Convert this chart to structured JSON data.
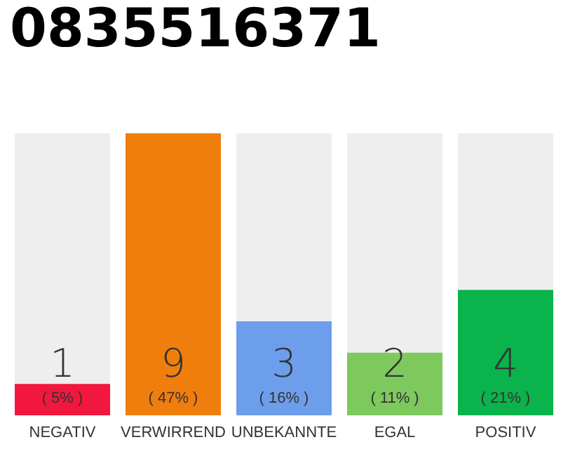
{
  "chart_data": {
    "type": "bar",
    "title": "0835516371",
    "categories": [
      "NEGATIV",
      "VERWIRREND",
      "UNBEKANNTE",
      "EGAL",
      "POSITIV"
    ],
    "values": [
      1,
      9,
      3,
      2,
      4
    ],
    "colors": [
      "#f2173f",
      "#f07e0c",
      "#6d9eeb",
      "#7dc95e",
      "#0ab34b"
    ],
    "value_labels": [
      "1\n( 5% )",
      "9\n( 47% )",
      "3\n( 16% )",
      "2\n( 11% )",
      "4\n( 21% )"
    ]
  }
}
